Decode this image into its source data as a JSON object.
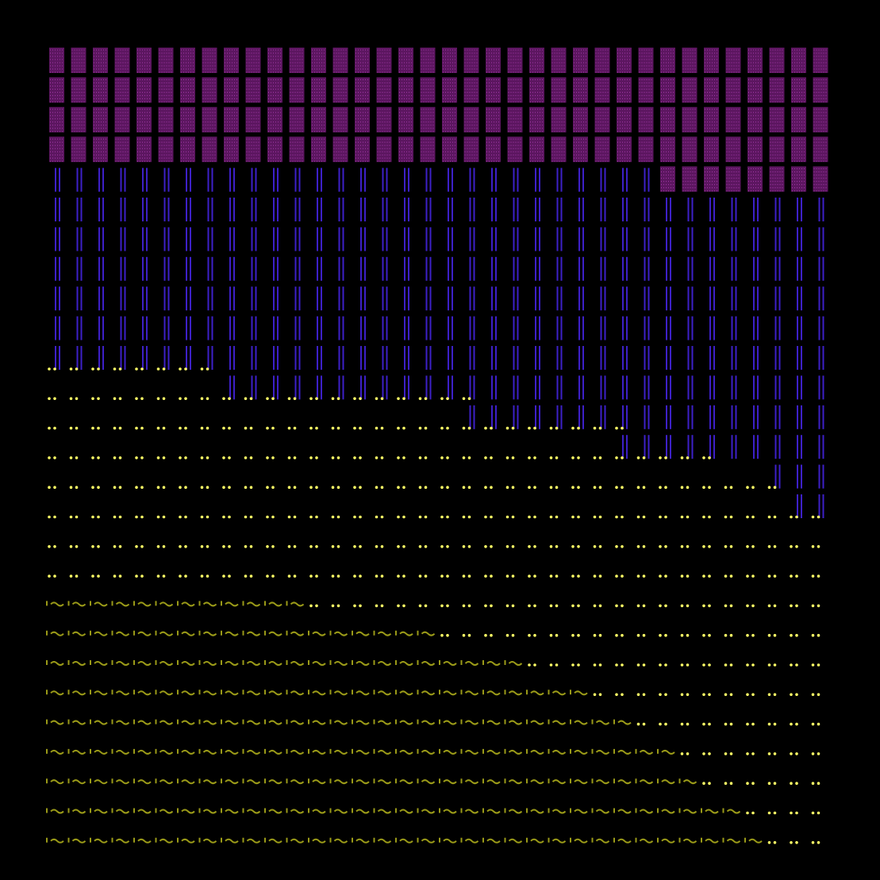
{
  "colors": {
    "background": "#000000",
    "purple": "#5c1660",
    "purple_dot": "#a23aa8",
    "blue": "#3d20c8",
    "yellow": "#ffff66",
    "olive": "#9a9a18"
  },
  "glyph_strings": {
    "pipes": "||",
    "dots": "..",
    "wave": "'~'"
  },
  "areas": {
    "rows": 27,
    "cols": 36,
    "purple_blocks": [
      36,
      36,
      36,
      36,
      8,
      0,
      0,
      0,
      0,
      0,
      0,
      0,
      0,
      0,
      0,
      0,
      0,
      0,
      0,
      0,
      0,
      0,
      0,
      0,
      0,
      0,
      0
    ],
    "blue_cols_end_row": [
      10,
      10,
      10,
      10,
      10,
      10,
      10,
      10,
      11,
      11,
      11,
      11,
      11,
      11,
      11,
      11,
      11,
      11,
      11,
      12,
      12,
      12,
      12,
      12,
      12,
      12,
      13,
      13,
      13,
      13,
      13,
      13,
      13,
      14,
      15,
      15
    ],
    "yellow_row_lengths": [
      8,
      20,
      27,
      31,
      34,
      36,
      36,
      36,
      36,
      36,
      36,
      36,
      36,
      36,
      36,
      36,
      36
    ],
    "wave_row_lengths": [
      0,
      0,
      0,
      12,
      18,
      22,
      25,
      27,
      29,
      30,
      32,
      33
    ]
  }
}
